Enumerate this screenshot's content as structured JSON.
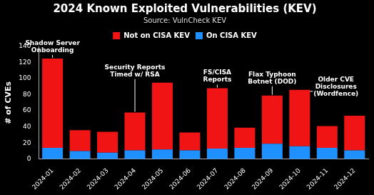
{
  "chart_data": {
    "type": "bar",
    "title": "2024 Known Exploited Vulnerabilities (KEV)",
    "subtitle": "Source: VulnCheck KEV",
    "y_label": "# of CVEs",
    "categories": [
      "2024-01",
      "2024-02",
      "2024-03",
      "2024-04",
      "2024-05",
      "2024-06",
      "2024-07",
      "2024-08",
      "2024-09",
      "2024-10",
      "2024-11",
      "2024-12"
    ],
    "series": [
      {
        "name": "On CISA KEV",
        "color": "#1e90ff",
        "values": [
          14,
          10,
          8,
          11,
          12,
          11,
          13,
          14,
          19,
          16,
          14,
          11
        ]
      },
      {
        "name": "Not on CISA KEV",
        "color": "#f01414",
        "values": [
          111,
          26,
          26,
          47,
          83,
          22,
          75,
          25,
          60,
          70,
          27,
          43
        ]
      }
    ],
    "stacked": true,
    "legend": "top",
    "grid": false,
    "ylim": [
      0,
      140
    ],
    "yticks": [
      0,
      20,
      40,
      60,
      80,
      100,
      120,
      140
    ],
    "annotations": [
      {
        "category": "2024-01",
        "text": [
          "Shadow Server",
          "Onboarding"
        ]
      },
      {
        "category": "2024-04",
        "text": [
          "Security Reports",
          "Timed w/ RSA"
        ]
      },
      {
        "category": "2024-07",
        "text": [
          "FS/CISA",
          "Reports"
        ]
      },
      {
        "category": "2024-09",
        "text": [
          "Flax Typhoon",
          "Botnet (DOD)"
        ]
      },
      {
        "category": "2024-10",
        "text": [
          "Older CVE",
          "Disclosures",
          "(Wordfence)"
        ]
      }
    ]
  }
}
